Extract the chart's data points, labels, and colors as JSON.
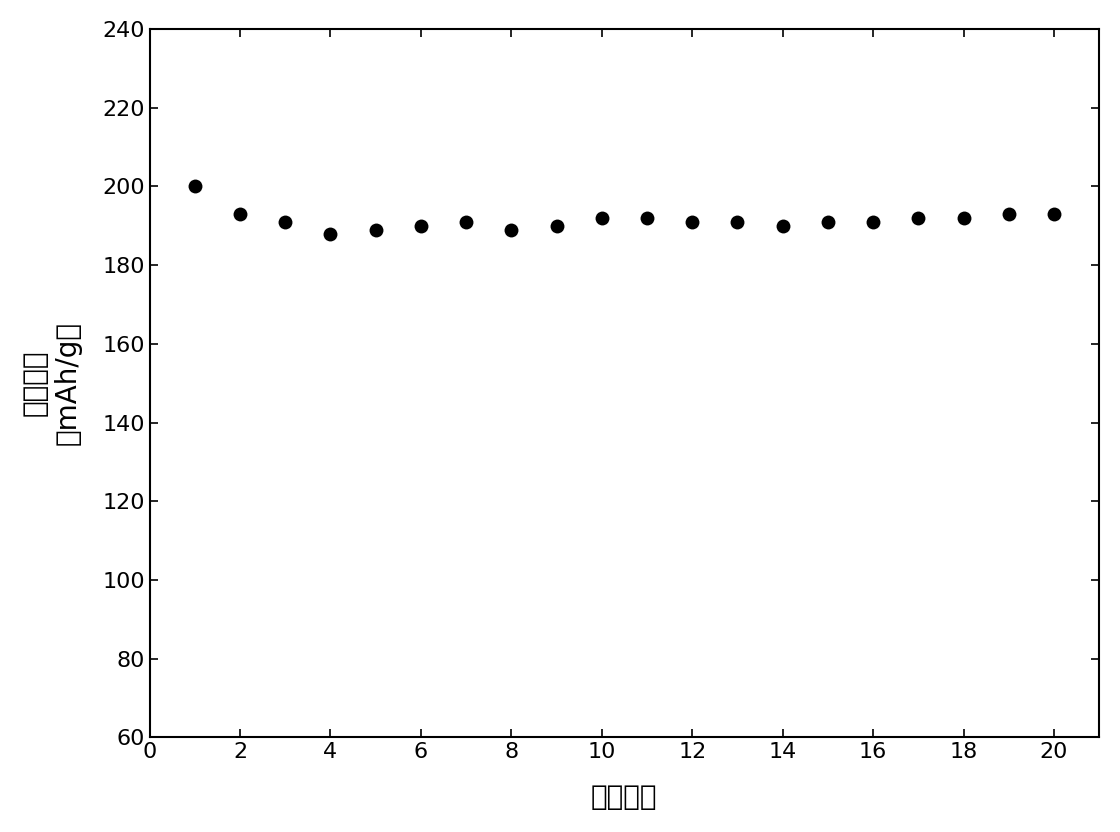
{
  "x": [
    1,
    2,
    3,
    4,
    5,
    6,
    7,
    8,
    9,
    10,
    11,
    12,
    13,
    14,
    15,
    16,
    17,
    18,
    19,
    20
  ],
  "y": [
    200,
    193,
    191,
    188,
    189,
    190,
    191,
    189,
    190,
    192,
    192,
    191,
    191,
    190,
    191,
    191,
    192,
    192,
    193,
    193
  ],
  "xlim": [
    0,
    21
  ],
  "ylim": [
    60,
    240
  ],
  "xticks": [
    0,
    2,
    4,
    6,
    8,
    10,
    12,
    14,
    16,
    18,
    20
  ],
  "yticks": [
    60,
    80,
    100,
    120,
    140,
    160,
    180,
    200,
    220,
    240
  ],
  "xlabel": "循环次数",
  "ylabel_line1": "放电容量",
  "ylabel_line2": "（mAh/g）",
  "marker_color": "#000000",
  "marker_size": 100,
  "background_color": "#ffffff",
  "axis_color": "#000000",
  "tick_fontsize": 16,
  "label_fontsize": 20
}
